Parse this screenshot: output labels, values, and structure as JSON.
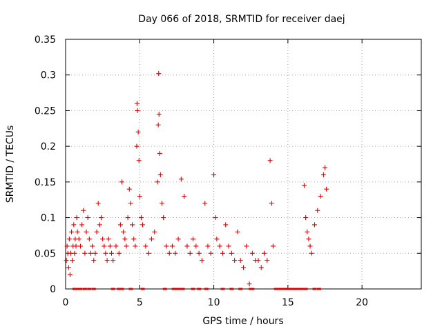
{
  "chart_data": {
    "type": "scatter",
    "title": "Day 066 of 2018, SRMTID for receiver daej",
    "xlabel": "GPS time / hours",
    "ylabel": "SRMTID / TECUs",
    "xlim": [
      0,
      24
    ],
    "ylim": [
      0,
      0.35
    ],
    "x_ticks": [
      0,
      5,
      10,
      15,
      20
    ],
    "x_tick_labels": [
      "0",
      "5",
      "10",
      "15",
      "20"
    ],
    "y_ticks": [
      0,
      0.05,
      0.1,
      0.15,
      0.2,
      0.25,
      0.3,
      0.35
    ],
    "y_tick_labels": [
      "0",
      "0.05",
      "0.1",
      "0.15",
      "0.2",
      "0.25",
      "0.3",
      "0.35"
    ],
    "grid": true,
    "marker": "+",
    "marker_color": "#dd0000",
    "series": [
      {
        "points": [
          [
            0.05,
            0.04
          ],
          [
            0.1,
            0.06
          ],
          [
            0.15,
            0.05
          ],
          [
            0.2,
            0.03
          ],
          [
            0.25,
            0.07
          ],
          [
            0.3,
            0.02
          ],
          [
            0.35,
            0.05
          ],
          [
            0.4,
            0.08
          ],
          [
            0.45,
            0.04
          ],
          [
            0.5,
            0.06
          ],
          [
            0.55,
            0.09
          ],
          [
            0.6,
            0.05
          ],
          [
            0.65,
            0.07
          ],
          [
            0.7,
            0.06
          ],
          [
            0.75,
            0.1
          ],
          [
            0.8,
            0.08
          ],
          [
            0.9,
            0.07
          ],
          [
            1.0,
            0.06
          ],
          [
            1.1,
            0.09
          ],
          [
            1.2,
            0.11
          ],
          [
            1.3,
            0.05
          ],
          [
            1.4,
            0.08
          ],
          [
            1.5,
            0.1
          ],
          [
            1.6,
            0.07
          ],
          [
            1.7,
            0.05
          ],
          [
            1.8,
            0.06
          ],
          [
            1.9,
            0.04
          ],
          [
            2.0,
            0.05
          ],
          [
            2.1,
            0.08
          ],
          [
            2.2,
            0.12
          ],
          [
            2.3,
            0.09
          ],
          [
            2.4,
            0.1
          ],
          [
            2.5,
            0.07
          ],
          [
            2.6,
            0.06
          ],
          [
            2.7,
            0.05
          ],
          [
            2.8,
            0.04
          ],
          [
            2.9,
            0.07
          ],
          [
            3.0,
            0.06
          ],
          [
            3.1,
            0.05
          ],
          [
            3.2,
            0.04
          ],
          [
            3.4,
            0.06
          ],
          [
            3.6,
            0.05
          ],
          [
            3.7,
            0.09
          ],
          [
            3.8,
            0.15
          ],
          [
            3.9,
            0.08
          ],
          [
            4.0,
            0.07
          ],
          [
            4.1,
            0.06
          ],
          [
            4.2,
            0.1
          ],
          [
            4.3,
            0.14
          ],
          [
            4.4,
            0.12
          ],
          [
            4.5,
            0.09
          ],
          [
            4.6,
            0.07
          ],
          [
            4.7,
            0.06
          ],
          [
            4.8,
            0.2
          ],
          [
            4.82,
            0.26
          ],
          [
            4.85,
            0.25
          ],
          [
            4.9,
            0.22
          ],
          [
            4.95,
            0.18
          ],
          [
            5.0,
            0.13
          ],
          [
            5.1,
            0.1
          ],
          [
            5.2,
            0.09
          ],
          [
            5.4,
            0.06
          ],
          [
            5.6,
            0.05
          ],
          [
            5.8,
            0.07
          ],
          [
            6.0,
            0.08
          ],
          [
            6.2,
            0.15
          ],
          [
            6.25,
            0.23
          ],
          [
            6.28,
            0.302
          ],
          [
            6.3,
            0.245
          ],
          [
            6.35,
            0.19
          ],
          [
            6.4,
            0.16
          ],
          [
            6.5,
            0.12
          ],
          [
            6.6,
            0.1
          ],
          [
            6.8,
            0.06
          ],
          [
            7.0,
            0.05
          ],
          [
            7.2,
            0.06
          ],
          [
            7.4,
            0.05
          ],
          [
            7.6,
            0.07
          ],
          [
            7.8,
            0.154
          ],
          [
            8.0,
            0.13
          ],
          [
            8.2,
            0.06
          ],
          [
            8.4,
            0.05
          ],
          [
            8.6,
            0.07
          ],
          [
            8.8,
            0.06
          ],
          [
            9.0,
            0.05
          ],
          [
            9.2,
            0.04
          ],
          [
            9.4,
            0.12
          ],
          [
            9.6,
            0.06
          ],
          [
            9.8,
            0.05
          ],
          [
            10.0,
            0.16
          ],
          [
            10.1,
            0.1
          ],
          [
            10.2,
            0.07
          ],
          [
            10.4,
            0.06
          ],
          [
            10.6,
            0.05
          ],
          [
            10.8,
            0.09
          ],
          [
            11.0,
            0.06
          ],
          [
            11.2,
            0.05
          ],
          [
            11.4,
            0.04
          ],
          [
            11.6,
            0.08
          ],
          [
            11.8,
            0.04
          ],
          [
            12.0,
            0.03
          ],
          [
            12.2,
            0.06
          ],
          [
            12.4,
            0.007
          ],
          [
            12.6,
            0.05
          ],
          [
            12.8,
            0.04
          ],
          [
            13.0,
            0.04
          ],
          [
            13.2,
            0.03
          ],
          [
            13.4,
            0.05
          ],
          [
            13.6,
            0.04
          ],
          [
            13.8,
            0.18
          ],
          [
            13.9,
            0.12
          ],
          [
            14.0,
            0.06
          ],
          [
            16.1,
            0.145
          ],
          [
            16.2,
            0.1
          ],
          [
            16.3,
            0.08
          ],
          [
            16.4,
            0.07
          ],
          [
            16.5,
            0.06
          ],
          [
            16.6,
            0.05
          ],
          [
            16.8,
            0.09
          ],
          [
            17.0,
            0.11
          ],
          [
            17.2,
            0.13
          ],
          [
            17.4,
            0.16
          ],
          [
            17.5,
            0.17
          ],
          [
            17.6,
            0.14
          ]
        ]
      },
      {
        "points": [
          [
            0.6,
            0
          ],
          [
            0.8,
            0
          ],
          [
            1.0,
            0
          ],
          [
            1.3,
            0
          ],
          [
            1.6,
            0
          ],
          [
            1.9,
            0
          ],
          [
            3.2,
            0
          ],
          [
            3.6,
            0
          ],
          [
            3.8,
            0
          ],
          [
            4.4,
            0
          ],
          [
            5.2,
            0
          ],
          [
            6.7,
            0
          ],
          [
            7.3,
            0
          ],
          [
            7.5,
            0
          ],
          [
            7.7,
            0
          ],
          [
            7.9,
            0
          ],
          [
            8.6,
            0
          ],
          [
            9.0,
            0
          ],
          [
            9.5,
            0
          ],
          [
            10.6,
            0
          ],
          [
            11.2,
            0
          ],
          [
            11.8,
            0
          ],
          [
            12.5,
            0
          ],
          [
            12.6,
            0
          ],
          [
            14.2,
            0
          ],
          [
            14.4,
            0
          ],
          [
            14.6,
            0
          ],
          [
            14.8,
            0
          ],
          [
            15.0,
            0
          ],
          [
            15.2,
            0
          ],
          [
            15.4,
            0
          ],
          [
            15.6,
            0
          ],
          [
            15.8,
            0
          ],
          [
            16.0,
            0
          ],
          [
            16.2,
            0
          ],
          [
            16.8,
            0
          ],
          [
            17.1,
            0
          ]
        ]
      }
    ]
  }
}
